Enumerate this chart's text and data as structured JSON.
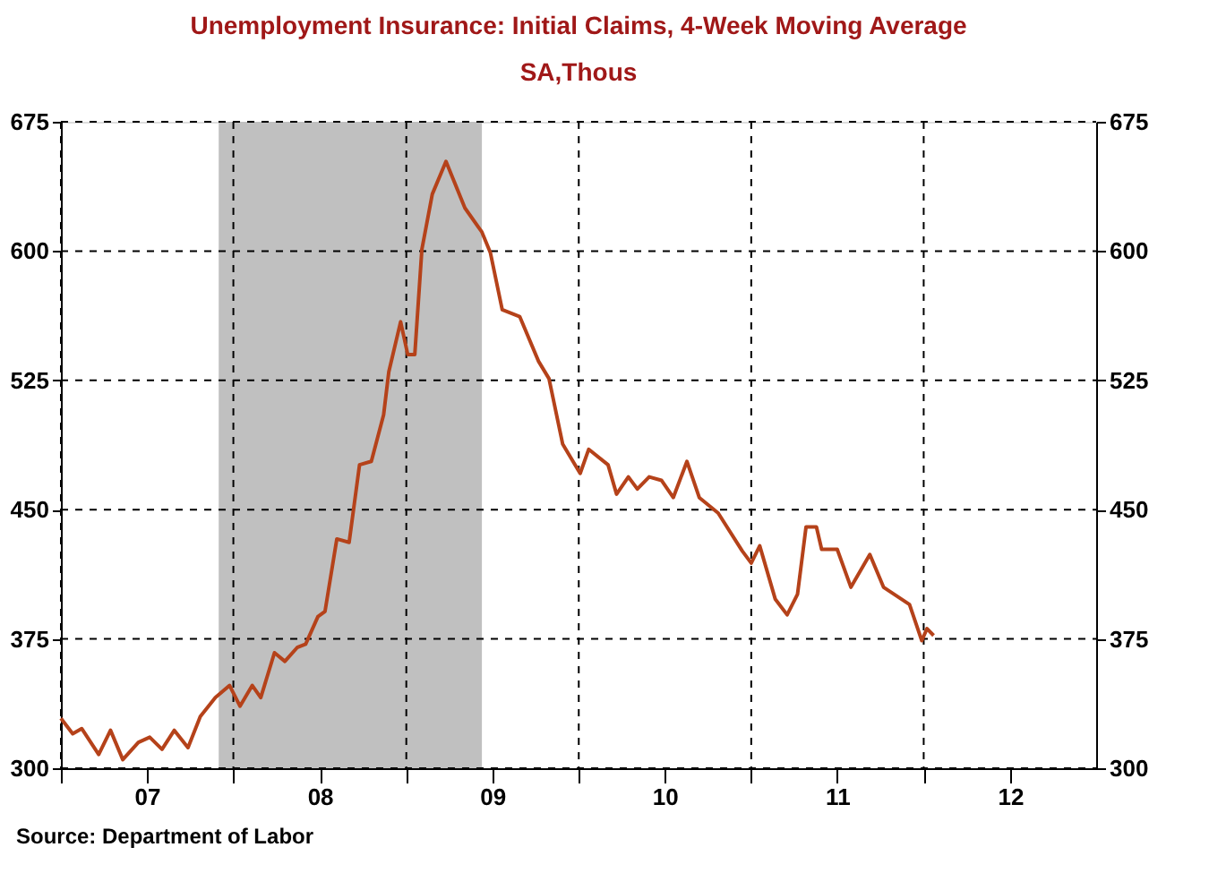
{
  "chart_data": {
    "type": "line",
    "title": "Unemployment Insurance: Initial Claims, 4-Week Moving Average",
    "subtitle": "SA,Thous",
    "x": [
      "2007-01-01",
      "2007-01-26",
      "2007-02-14",
      "2007-03-22",
      "2007-04-16",
      "2007-05-12",
      "2007-06-14",
      "2007-07-08",
      "2007-08-03",
      "2007-08-29",
      "2007-09-27",
      "2007-10-23",
      "2007-11-24",
      "2007-12-24",
      "2008-01-15",
      "2008-02-10",
      "2008-02-28",
      "2008-03-28",
      "2008-04-19",
      "2008-05-15",
      "2008-06-02",
      "2008-06-28",
      "2008-07-13",
      "2008-08-07",
      "2008-09-02",
      "2008-09-24",
      "2008-10-19",
      "2008-11-14",
      "2008-11-25",
      "2008-12-20",
      "2009-01-04",
      "2009-01-19",
      "2009-02-03",
      "2009-02-25",
      "2009-03-26",
      "2009-05-05",
      "2009-06-10",
      "2009-06-28",
      "2009-07-23",
      "2009-08-29",
      "2009-10-08",
      "2009-10-30",
      "2009-11-28",
      "2010-01-04",
      "2010-01-22",
      "2010-03-04",
      "2010-03-22",
      "2010-04-16",
      "2010-05-05",
      "2010-05-30",
      "2010-06-25",
      "2010-07-20",
      "2010-08-18",
      "2010-09-13",
      "2010-10-23",
      "2010-12-13",
      "2011-01-01",
      "2011-01-19",
      "2011-02-21",
      "2011-03-18",
      "2011-04-09",
      "2011-04-27",
      "2011-05-19",
      "2011-05-30",
      "2011-07-02",
      "2011-07-31",
      "2011-09-09",
      "2011-10-08",
      "2011-12-02",
      "2011-12-28",
      "2012-01-08",
      "2012-01-22"
    ],
    "series": [
      {
        "color": "#b5421a",
        "values": [
          329,
          320,
          323,
          308,
          322,
          305,
          315,
          318,
          311,
          322,
          312,
          330,
          341,
          348,
          336,
          348,
          341,
          367,
          362,
          370,
          372,
          388,
          391,
          433,
          431,
          476,
          478,
          505,
          530,
          559,
          540,
          540,
          601,
          633,
          652,
          625,
          611,
          599,
          566,
          562,
          536,
          526,
          488,
          471,
          485,
          476,
          459,
          469,
          462,
          469,
          467,
          457,
          478,
          457,
          448,
          426,
          419,
          429,
          398,
          389,
          401,
          440,
          440,
          427,
          427,
          405,
          424,
          405,
          395,
          374,
          381,
          377
        ]
      }
    ],
    "xlim": [
      "2007-01-01",
      "2012-12-31"
    ],
    "xticks": [
      {
        "value": "2007-01-01",
        "label": null
      },
      {
        "value": "2007-07-02",
        "label": "07"
      },
      {
        "value": "2008-01-01",
        "label": null
      },
      {
        "value": "2008-07-02",
        "label": "08"
      },
      {
        "value": "2009-01-01",
        "label": null
      },
      {
        "value": "2009-07-02",
        "label": "09"
      },
      {
        "value": "2010-01-01",
        "label": null
      },
      {
        "value": "2010-07-02",
        "label": "10"
      },
      {
        "value": "2011-01-01",
        "label": null
      },
      {
        "value": "2011-07-02",
        "label": "11"
      },
      {
        "value": "2012-01-01",
        "label": null
      },
      {
        "value": "2012-07-02",
        "label": "12"
      }
    ],
    "ylim": [
      300,
      675
    ],
    "yticks": [
      300,
      375,
      450,
      525,
      600,
      675
    ],
    "y2lim": [
      300,
      675
    ],
    "y2ticks": [
      300,
      375,
      450,
      525,
      600,
      675
    ],
    "bands": [
      {
        "axis": "x",
        "from": "2007-12-01",
        "to": "2009-06-10",
        "color": "#c0c0c0"
      }
    ],
    "grid": true,
    "line_style": "solid",
    "annotations": [
      "Source:  Department of Labor"
    ]
  }
}
